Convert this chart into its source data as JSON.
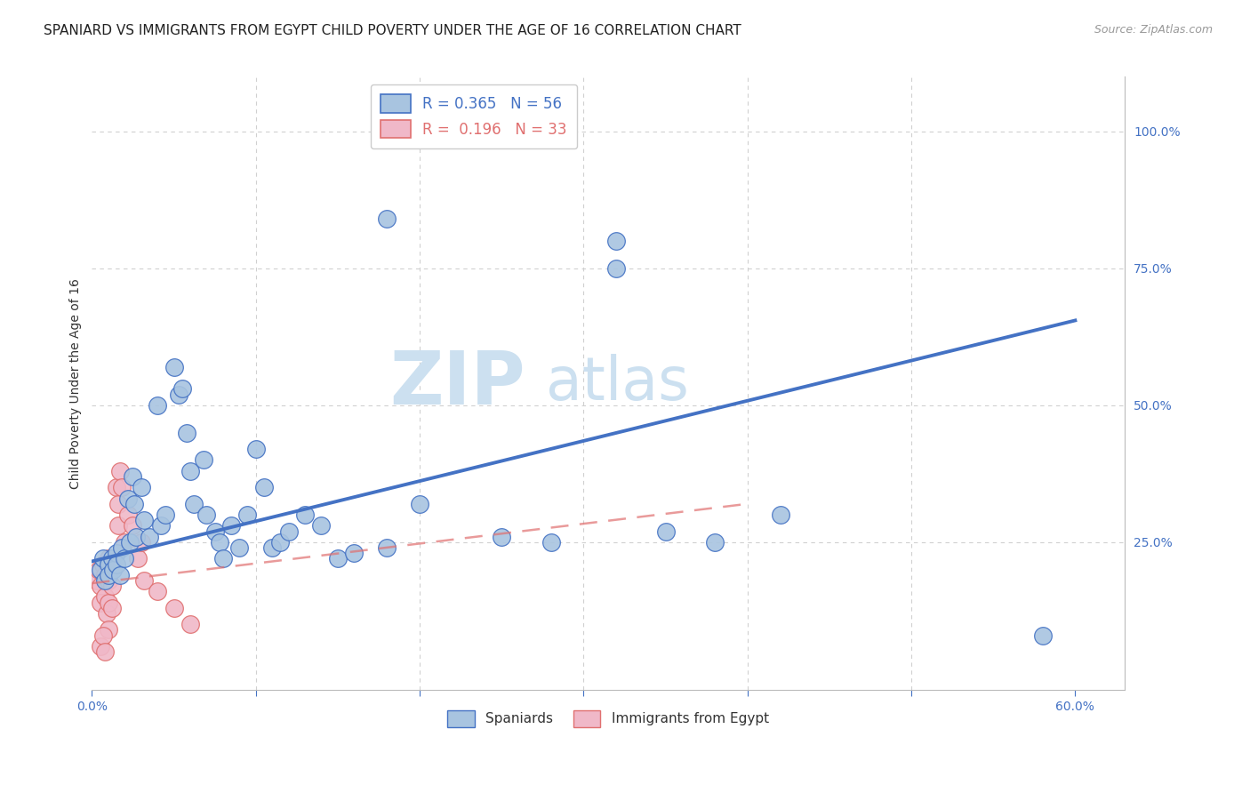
{
  "title": "SPANIARD VS IMMIGRANTS FROM EGYPT CHILD POVERTY UNDER THE AGE OF 16 CORRELATION CHART",
  "source": "Source: ZipAtlas.com",
  "ylabel": "Child Poverty Under the Age of 16",
  "xlim": [
    0.0,
    0.63
  ],
  "ylim": [
    -0.02,
    1.1
  ],
  "blue_scatter": [
    [
      0.005,
      0.2
    ],
    [
      0.007,
      0.22
    ],
    [
      0.008,
      0.18
    ],
    [
      0.01,
      0.21
    ],
    [
      0.01,
      0.19
    ],
    [
      0.012,
      0.22
    ],
    [
      0.013,
      0.2
    ],
    [
      0.015,
      0.23
    ],
    [
      0.015,
      0.21
    ],
    [
      0.017,
      0.19
    ],
    [
      0.018,
      0.24
    ],
    [
      0.02,
      0.22
    ],
    [
      0.022,
      0.33
    ],
    [
      0.023,
      0.25
    ],
    [
      0.025,
      0.37
    ],
    [
      0.026,
      0.32
    ],
    [
      0.027,
      0.26
    ],
    [
      0.03,
      0.35
    ],
    [
      0.032,
      0.29
    ],
    [
      0.035,
      0.26
    ],
    [
      0.04,
      0.5
    ],
    [
      0.042,
      0.28
    ],
    [
      0.045,
      0.3
    ],
    [
      0.05,
      0.57
    ],
    [
      0.053,
      0.52
    ],
    [
      0.055,
      0.53
    ],
    [
      0.058,
      0.45
    ],
    [
      0.06,
      0.38
    ],
    [
      0.062,
      0.32
    ],
    [
      0.068,
      0.4
    ],
    [
      0.07,
      0.3
    ],
    [
      0.075,
      0.27
    ],
    [
      0.078,
      0.25
    ],
    [
      0.08,
      0.22
    ],
    [
      0.085,
      0.28
    ],
    [
      0.09,
      0.24
    ],
    [
      0.095,
      0.3
    ],
    [
      0.1,
      0.42
    ],
    [
      0.105,
      0.35
    ],
    [
      0.11,
      0.24
    ],
    [
      0.115,
      0.25
    ],
    [
      0.12,
      0.27
    ],
    [
      0.13,
      0.3
    ],
    [
      0.14,
      0.28
    ],
    [
      0.15,
      0.22
    ],
    [
      0.16,
      0.23
    ],
    [
      0.18,
      0.24
    ],
    [
      0.2,
      0.32
    ],
    [
      0.25,
      0.26
    ],
    [
      0.28,
      0.25
    ],
    [
      0.32,
      0.75
    ],
    [
      0.35,
      0.27
    ],
    [
      0.38,
      0.25
    ],
    [
      0.42,
      0.3
    ],
    [
      0.58,
      0.08
    ],
    [
      0.18,
      0.84
    ],
    [
      0.32,
      0.8
    ]
  ],
  "pink_scatter": [
    [
      0.003,
      0.18
    ],
    [
      0.004,
      0.2
    ],
    [
      0.005,
      0.17
    ],
    [
      0.005,
      0.14
    ],
    [
      0.007,
      0.21
    ],
    [
      0.008,
      0.19
    ],
    [
      0.008,
      0.15
    ],
    [
      0.009,
      0.12
    ],
    [
      0.01,
      0.22
    ],
    [
      0.01,
      0.18
    ],
    [
      0.01,
      0.14
    ],
    [
      0.01,
      0.09
    ],
    [
      0.011,
      0.2
    ],
    [
      0.012,
      0.17
    ],
    [
      0.012,
      0.13
    ],
    [
      0.013,
      0.21
    ],
    [
      0.015,
      0.35
    ],
    [
      0.016,
      0.32
    ],
    [
      0.016,
      0.28
    ],
    [
      0.017,
      0.38
    ],
    [
      0.018,
      0.35
    ],
    [
      0.02,
      0.25
    ],
    [
      0.022,
      0.3
    ],
    [
      0.025,
      0.28
    ],
    [
      0.028,
      0.22
    ],
    [
      0.03,
      0.25
    ],
    [
      0.032,
      0.18
    ],
    [
      0.04,
      0.16
    ],
    [
      0.005,
      0.06
    ],
    [
      0.007,
      0.08
    ],
    [
      0.008,
      0.05
    ],
    [
      0.05,
      0.13
    ],
    [
      0.06,
      0.1
    ]
  ],
  "blue_line_x": [
    0.0,
    0.6
  ],
  "blue_line_y": [
    0.215,
    0.655
  ],
  "pink_line_x": [
    0.0,
    0.4
  ],
  "pink_line_y": [
    0.175,
    0.32
  ],
  "blue_color": "#4472c4",
  "pink_color": "#e07070",
  "blue_scatter_color": "#a8c4e0",
  "pink_scatter_color": "#f0b8c8",
  "grid_color": "#d0d0d0",
  "background_color": "#ffffff",
  "title_fontsize": 11,
  "ylabel_fontsize": 10,
  "tick_fontsize": 10,
  "watermark_zip": "ZIP",
  "watermark_atlas": "atlas",
  "watermark_color": "#cce0f0"
}
